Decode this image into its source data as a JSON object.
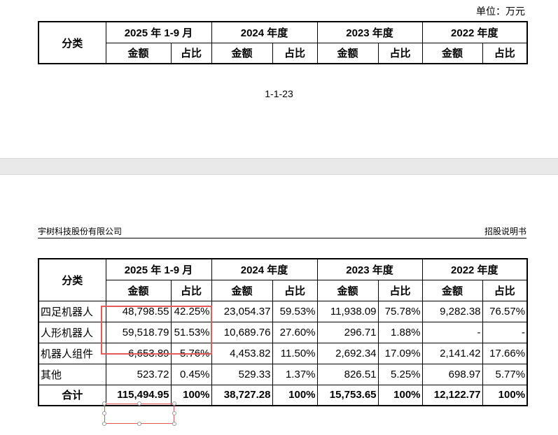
{
  "unit_label": "单位：万元",
  "page_number": "1-1-23",
  "doc_header": {
    "company": "宇树科技股份有限公司",
    "doc_type": "招股说明书"
  },
  "table_header": {
    "category": "分类",
    "periods": [
      "2025 年 1-9 月",
      "2024 年度",
      "2023 年度",
      "2022 年度"
    ],
    "amount": "金额",
    "ratio": "占比"
  },
  "rows": [
    {
      "label": "四足机器人",
      "cells": [
        "48,798.55",
        "42.25%",
        "23,054.37",
        "59.53%",
        "11,938.09",
        "75.78%",
        "9,282.38",
        "76.57%"
      ]
    },
    {
      "label": "人形机器人",
      "cells": [
        "59,518.79",
        "51.53%",
        "10,689.76",
        "27.60%",
        "296.71",
        "1.88%",
        "-",
        "-"
      ]
    },
    {
      "label": "机器人组件",
      "cells": [
        "6,653.89",
        "5.76%",
        "4,453.82",
        "11.50%",
        "2,692.34",
        "17.09%",
        "2,141.42",
        "17.66%"
      ]
    },
    {
      "label": "其他",
      "cells": [
        "523.72",
        "0.45%",
        "529.33",
        "1.37%",
        "826.51",
        "5.25%",
        "698.97",
        "5.77%"
      ]
    }
  ],
  "total": {
    "label": "合计",
    "cells": [
      "115,494.95",
      "100%",
      "38,727.28",
      "100%",
      "15,753.65",
      "100%",
      "12,122.77",
      "100%"
    ]
  },
  "colors": {
    "highlight": "#e35a5a",
    "page_gap": "#e9e9e9"
  }
}
